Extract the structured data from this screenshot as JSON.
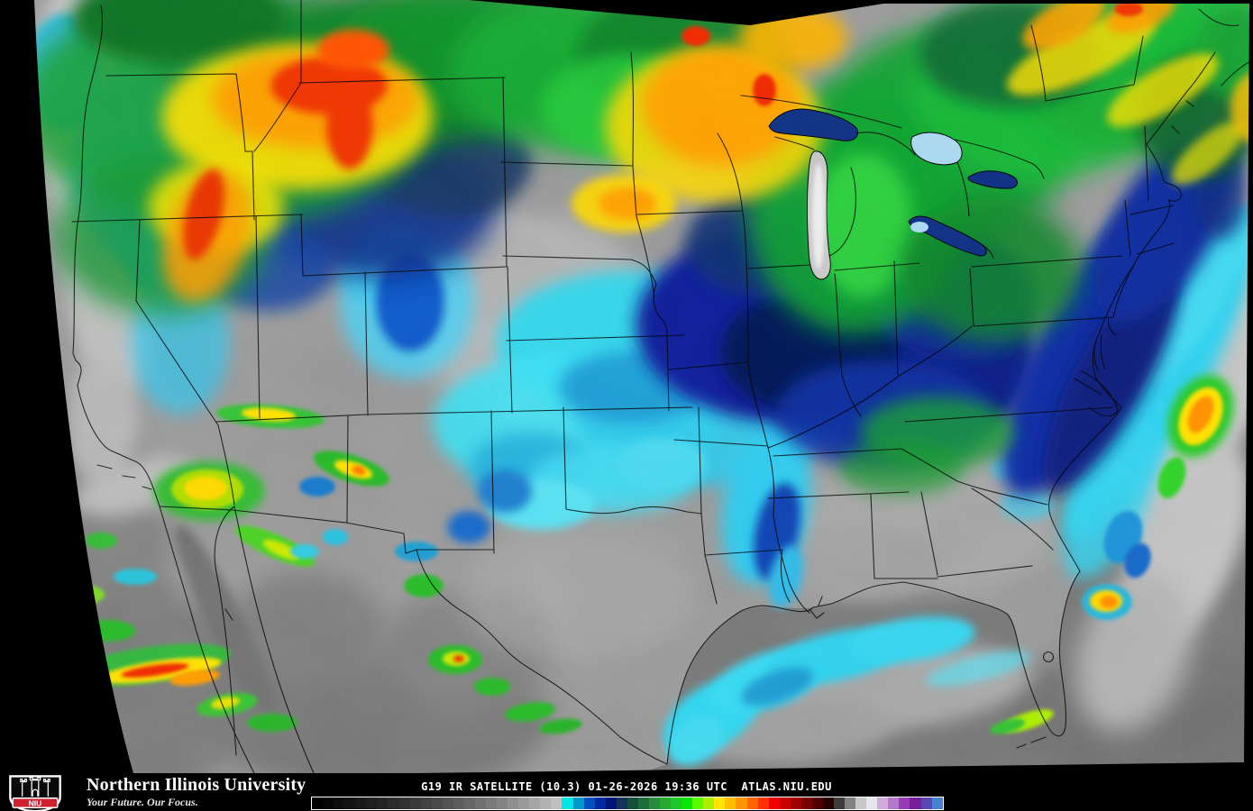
{
  "page": {
    "background": "#000000"
  },
  "satellite_image": {
    "description": "GOES-19 longwave infrared satellite image of the continental United States with state borders",
    "base_land_gray": "#969696",
    "ocean_gray": "#757575",
    "cold_cloud_colors": [
      "#00e6e6",
      "#0028a0",
      "#1ec828",
      "#ffe600",
      "#ff9600",
      "#f00000"
    ]
  },
  "footer": {
    "logo": {
      "acronym": "NIU",
      "institution": "Northern Illinois University",
      "tagline": "Your Future. Our Focus.",
      "shield_red": "#cf2030"
    },
    "caption": {
      "satellite": "G19",
      "product": "IR SATELLITE",
      "channel": "(10.3)",
      "date": "01-26-2026",
      "time": "19:36 UTC",
      "site": "ATLAS.NIU.EDU",
      "full": "G19 IR SATELLITE (10.3) 01-26-2026 19:36 UTC  ATLAS.NIU.EDU"
    }
  },
  "colorbar": {
    "border": "#ffffff",
    "colors": [
      "#000000",
      "#060606",
      "#0c0c0c",
      "#121212",
      "#181818",
      "#1e1e1e",
      "#242424",
      "#2b2b2b",
      "#323232",
      "#3a3a3a",
      "#424242",
      "#4b4b4b",
      "#545454",
      "#5d5d5d",
      "#666666",
      "#707070",
      "#7a7a7a",
      "#848484",
      "#8f8f8f",
      "#9a9a9a",
      "#a6a6a6",
      "#b2b2b2",
      "#c0c0c0",
      "#00e6e6",
      "#0098c8",
      "#0050be",
      "#0028a0",
      "#001478",
      "#14325a",
      "#14503c",
      "#1e6e3c",
      "#288c3c",
      "#28aa32",
      "#1ec828",
      "#0ae60a",
      "#5afa00",
      "#aaf000",
      "#ffe600",
      "#ffbe00",
      "#ff9600",
      "#ff6400",
      "#ff3200",
      "#f00000",
      "#c80000",
      "#a00000",
      "#780000",
      "#500000",
      "#280000",
      "#3c3c3c",
      "#828282",
      "#c8c8c8",
      "#e6e6f0",
      "#d2aadc",
      "#b478c8",
      "#963cb4",
      "#781e9b",
      "#5a46b4",
      "#4682d2"
    ]
  }
}
